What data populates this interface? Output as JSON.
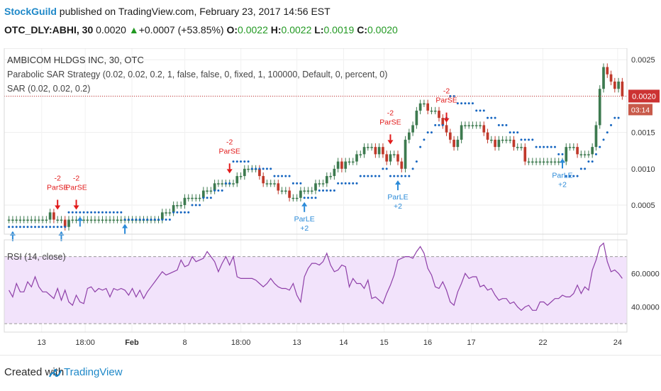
{
  "header": {
    "brand": "StockGuild",
    "published": "published on TradingView.com, February 23, 2017 14:56 EST",
    "symbol": "OTC_DLY:ABHI, 30",
    "last": "0.0020",
    "change": "+0.0007 (+53.85%)",
    "o_label": "O:",
    "o": "0.0022",
    "h_label": "H:",
    "h": "0.0022",
    "l_label": "L:",
    "l": "0.0019",
    "c_label": "C:",
    "c": "0.0020"
  },
  "footer": {
    "created": "Created with",
    "brand": "TradingView"
  },
  "colors": {
    "up": "#3d7a4f",
    "down": "#c0392b",
    "sar": "#1565c0",
    "rsi": "#8e3fa8",
    "rsi_band": "#f2e3fb",
    "signal_short": "#e21b1b",
    "signal_long": "#2a8ad8",
    "price_line": "#cc3333"
  },
  "chart_data": [
    {
      "type": "candlestick",
      "title": "AMBICOM HLDGS INC, 30, OTC",
      "indicator_labels": [
        "Parabolic SAR Strategy (0.02, 0.02, 0.2, 1, false, false, 0, fixed, 1, 100000, Default, 0, percent, 0)",
        "SAR (0.02, 0.02, 0.2)"
      ],
      "ylim": [
        0.0001,
        0.0026
      ],
      "yticks": [
        "0.0005",
        "0.0010",
        "0.0015",
        "0.0020",
        "0.0025"
      ],
      "last_price_label": "0.0020",
      "countdown_label": "03:14",
      "closes": [
        0.0003,
        0.0003,
        0.0003,
        0.0003,
        0.0003,
        0.0003,
        0.0003,
        0.0003,
        0.0003,
        0.0003,
        0.0003,
        0.0004,
        0.0003,
        0.0003,
        0.0003,
        0.0002,
        0.0003,
        0.0003,
        0.0003,
        0.0003,
        0.0003,
        0.0003,
        0.0003,
        0.0003,
        0.0003,
        0.0003,
        0.0003,
        0.0003,
        0.0003,
        0.0003,
        0.0003,
        0.0003,
        0.0003,
        0.0003,
        0.0003,
        0.0003,
        0.0003,
        0.0003,
        0.0003,
        0.0003,
        0.0003,
        0.0004,
        0.0004,
        0.0004,
        0.0005,
        0.0005,
        0.0005,
        0.0006,
        0.0006,
        0.0006,
        0.0006,
        0.0006,
        0.0007,
        0.0007,
        0.0007,
        0.0008,
        0.0008,
        0.0008,
        0.0008,
        0.0008,
        0.0008,
        0.0009,
        0.0009,
        0.001,
        0.001,
        0.001,
        0.001,
        0.0009,
        0.0008,
        0.0008,
        0.0008,
        0.0008,
        0.0007,
        0.0007,
        0.0007,
        0.0006,
        0.0006,
        0.0006,
        0.0007,
        0.0007,
        0.0007,
        0.0007,
        0.0008,
        0.0008,
        0.0008,
        0.0009,
        0.0009,
        0.001,
        0.0011,
        0.001,
        0.0011,
        0.0011,
        0.0011,
        0.0012,
        0.0012,
        0.0013,
        0.0013,
        0.0013,
        0.0012,
        0.0013,
        0.0012,
        0.0011,
        0.0012,
        0.0012,
        0.0011,
        0.001,
        0.0014,
        0.0015,
        0.0016,
        0.0018,
        0.0019,
        0.0019,
        0.0018,
        0.0018,
        0.0018,
        0.0017,
        0.0016,
        0.0015,
        0.0014,
        0.0013,
        0.0014,
        0.0016,
        0.0016,
        0.0016,
        0.0016,
        0.0016,
        0.0016,
        0.0015,
        0.0014,
        0.0014,
        0.0013,
        0.0014,
        0.0014,
        0.0014,
        0.0014,
        0.0013,
        0.0013,
        0.0013,
        0.0011,
        0.0011,
        0.0011,
        0.0011,
        0.0011,
        0.0011,
        0.0011,
        0.0011,
        0.0011,
        0.0011,
        0.0011,
        0.0013,
        0.0013,
        0.0013,
        0.0012,
        0.0012,
        0.0012,
        0.0012,
        0.0013,
        0.0016,
        0.0021,
        0.0024,
        0.0023,
        0.0022,
        0.0021,
        0.0022,
        0.002
      ],
      "sar": [
        0.0002,
        0.0002,
        0.0002,
        0.0002,
        0.0002,
        0.0002,
        0.0002,
        0.0002,
        0.0002,
        0.0002,
        0.0002,
        0.0002,
        0.0002,
        0.0002,
        0.0002,
        0.0002,
        0.0004,
        0.0004,
        0.0004,
        0.0004,
        0.0004,
        0.0004,
        0.0004,
        0.0004,
        0.0004,
        0.0004,
        0.0004,
        0.0004,
        0.0004,
        0.0004,
        0.0004,
        0.0003,
        0.0003,
        0.0003,
        0.0003,
        0.0003,
        0.0003,
        0.0003,
        0.0003,
        0.0003,
        0.0003,
        0.0003,
        0.0003,
        0.0003,
        0.0004,
        0.0004,
        0.0004,
        0.0004,
        0.0004,
        0.0005,
        0.0005,
        0.0005,
        0.0006,
        0.0006,
        0.0006,
        0.0007,
        0.0007,
        0.0007,
        0.0008,
        0.0008,
        0.0011,
        0.0011,
        0.0011,
        0.0011,
        0.0011,
        0.001,
        0.001,
        0.001,
        0.001,
        0.001,
        0.001,
        0.0009,
        0.0009,
        0.0009,
        0.0009,
        0.0009,
        0.0008,
        0.0008,
        0.0008,
        0.0006,
        0.0006,
        0.0006,
        0.0006,
        0.0007,
        0.0007,
        0.0007,
        0.0007,
        0.0007,
        0.0008,
        0.0008,
        0.0008,
        0.0008,
        0.0008,
        0.0008,
        0.0009,
        0.0009,
        0.0009,
        0.0009,
        0.0009,
        0.0009,
        0.001,
        0.001,
        0.0009,
        0.0009,
        0.0009,
        0.0009,
        0.0009,
        0.0009,
        0.001,
        0.0011,
        0.0013,
        0.0014,
        0.0015,
        0.0015,
        0.0016,
        0.0016,
        0.0016,
        0.0017,
        0.002,
        0.002,
        0.0019,
        0.0019,
        0.0019,
        0.0019,
        0.0019,
        0.0018,
        0.0018,
        0.0018,
        0.0017,
        0.0017,
        0.0017,
        0.0016,
        0.0016,
        0.0016,
        0.0015,
        0.0015,
        0.0015,
        0.0014,
        0.0014,
        0.0014,
        0.0014,
        0.0013,
        0.0013,
        0.0013,
        0.0013,
        0.0013,
        0.0013,
        0.0012,
        0.0012,
        0.0009,
        0.0009,
        0.0009,
        0.0009,
        0.001,
        0.001,
        0.0011,
        0.0011,
        0.0012,
        0.0013,
        0.0014,
        0.0015,
        0.0016,
        0.0017,
        0.0017
      ],
      "signals": [
        {
          "i": 1,
          "dir": "long",
          "labels": []
        },
        {
          "i": 13,
          "dir": "short",
          "labels": [
            "-2",
            "ParSE"
          ]
        },
        {
          "i": 14,
          "dir": "long",
          "labels": []
        },
        {
          "i": 18,
          "dir": "short",
          "labels": [
            "-2",
            "ParSE"
          ]
        },
        {
          "i": 19,
          "dir": "long",
          "labels": []
        },
        {
          "i": 31,
          "dir": "long",
          "labels": []
        },
        {
          "i": 59,
          "dir": "short",
          "labels": [
            "-2",
            "ParSE"
          ]
        },
        {
          "i": 79,
          "dir": "long",
          "labels": [
            "ParLE",
            "+2"
          ]
        },
        {
          "i": 102,
          "dir": "short",
          "labels": [
            "-2",
            "ParSE"
          ]
        },
        {
          "i": 104,
          "dir": "long",
          "labels": [
            "ParLE",
            "+2"
          ]
        },
        {
          "i": 117,
          "dir": "short",
          "labels": [
            "-2",
            "ParSE"
          ]
        },
        {
          "i": 148,
          "dir": "long",
          "labels": [
            "ParLE",
            "+2"
          ]
        }
      ]
    },
    {
      "type": "line",
      "title": "RSI (14, close)",
      "ylim": [
        25,
        80
      ],
      "yticks": [
        "40.0000",
        "60.0000"
      ],
      "bands": [
        30,
        70
      ],
      "values": [
        50,
        46,
        54,
        49,
        49,
        55,
        52,
        58,
        52,
        49,
        49,
        47,
        45,
        51,
        44,
        50,
        43,
        41,
        47,
        43,
        42,
        51,
        52,
        49,
        51,
        50,
        51,
        46,
        51,
        50,
        51,
        50,
        47,
        51,
        46,
        50,
        45,
        49,
        52,
        55,
        58,
        61,
        59,
        60,
        61,
        62,
        68,
        64,
        65,
        70,
        67,
        68,
        69,
        73,
        70,
        67,
        61,
        66,
        70,
        65,
        70,
        58,
        57,
        57,
        57,
        57,
        56,
        54,
        52,
        54,
        57,
        54,
        52,
        51,
        51,
        50,
        54,
        47,
        43,
        58,
        63,
        66,
        66,
        65,
        67,
        72,
        65,
        61,
        62,
        65,
        64,
        52,
        57,
        54,
        54,
        51,
        56,
        45,
        46,
        44,
        42,
        48,
        53,
        59,
        68,
        69,
        70,
        70,
        69,
        73,
        76,
        72,
        63,
        59,
        52,
        51,
        55,
        50,
        43,
        41,
        49,
        54,
        60,
        57,
        58,
        58,
        52,
        53,
        50,
        51,
        47,
        44,
        45,
        45,
        42,
        43,
        40,
        38,
        40,
        41,
        38,
        38,
        43,
        43,
        41,
        43,
        45,
        45,
        47,
        46,
        46,
        48,
        53,
        48,
        52,
        50,
        62,
        68,
        76,
        78,
        67,
        61,
        62,
        60,
        57
      ]
    }
  ],
  "x_axis": [
    "13",
    "18:00",
    "Feb",
    "8",
    "18:00",
    "13",
    "14",
    "15",
    "16",
    "17",
    "22",
    "24"
  ]
}
